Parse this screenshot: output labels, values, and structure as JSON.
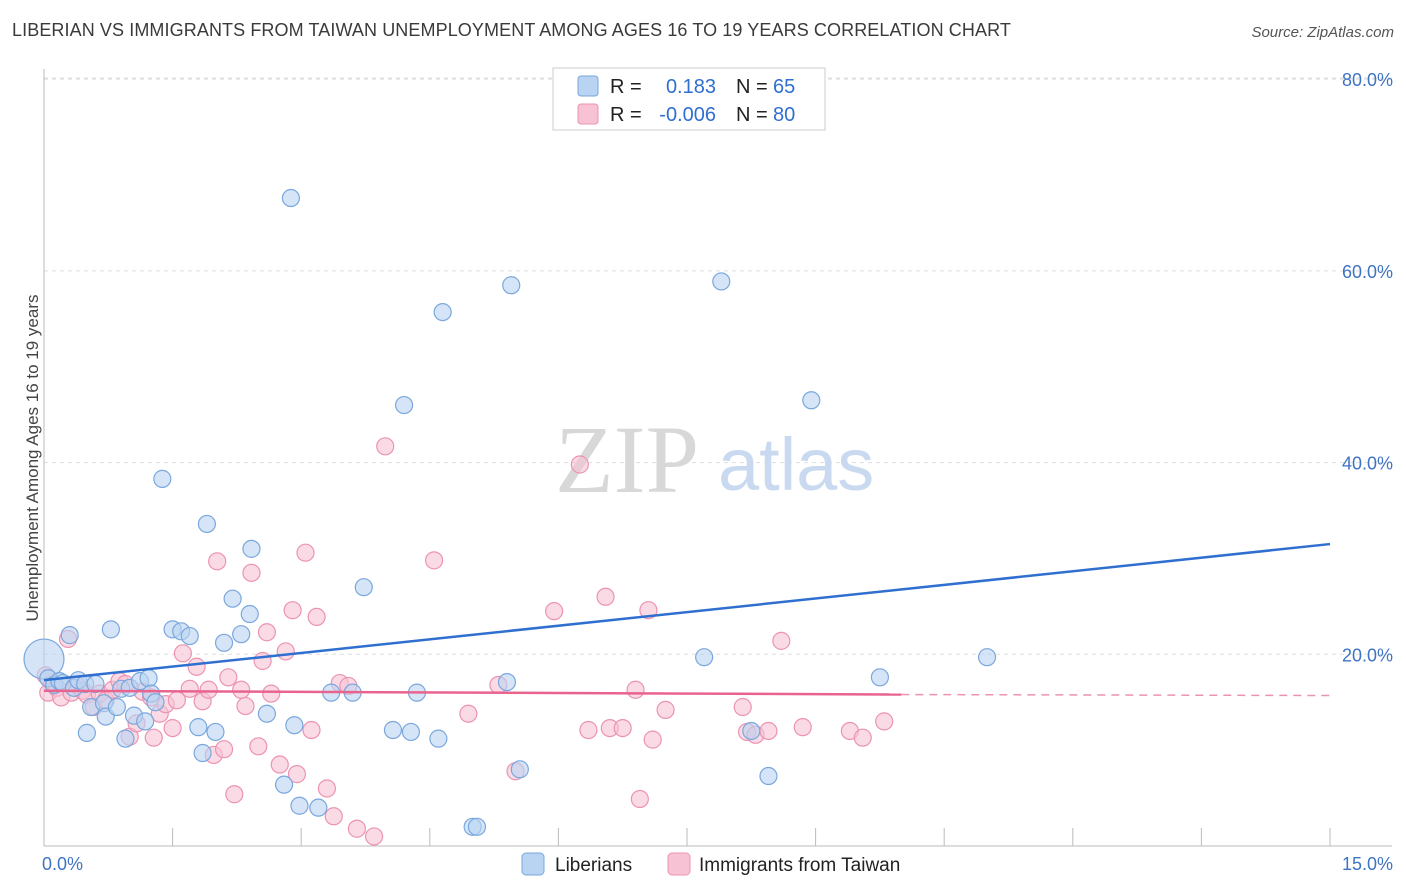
{
  "header": {
    "title": "LIBERIAN VS IMMIGRANTS FROM TAIWAN UNEMPLOYMENT AMONG AGES 16 TO 19 YEARS CORRELATION CHART",
    "source": "Source: ZipAtlas.com"
  },
  "watermark": {
    "zip": "ZIP",
    "atlas": "atlas"
  },
  "legend": {
    "r_label": "R =",
    "n_label": "N =",
    "rows": [
      {
        "r": "0.183",
        "n": "65"
      },
      {
        "r": "-0.006",
        "n": "80"
      }
    ]
  },
  "colors": {
    "blue_fill": "#b9d3f2",
    "blue_stroke": "#7aa7dd",
    "blue_line": "#2f6fd0",
    "pink_fill": "#f7c3d4",
    "pink_stroke": "#ec93b2",
    "pink_line": "#e8648f",
    "grid": "#dddddd",
    "axis": "#bbbbbb"
  },
  "chart_data": {
    "type": "scatter",
    "title": "LIBERIAN VS IMMIGRANTS FROM TAIWAN UNEMPLOYMENT AMONG AGES 16 TO 19 YEARS CORRELATION CHART",
    "xlabel": "",
    "ylabel": "Unemployment Among Ages 16 to 19 years",
    "xlim": [
      0,
      15
    ],
    "ylim": [
      0,
      82
    ],
    "x_tick_labels": [
      "0.0%",
      "15.0%"
    ],
    "y_ticks": [
      20,
      40,
      60,
      80
    ],
    "y_tick_labels": [
      "20.0%",
      "40.0%",
      "60.0%",
      "80.0%"
    ],
    "grid": true,
    "legend_placement": "bottom",
    "series": [
      {
        "name": "Liberians",
        "trend": {
          "x": [
            0,
            15
          ],
          "y": [
            17.3,
            31.5
          ],
          "dashed_to": null
        },
        "points": [
          [
            0.0,
            19.5,
            "big"
          ],
          [
            0.05,
            17.5
          ],
          [
            0.12,
            16.8
          ],
          [
            0.18,
            17.2
          ],
          [
            0.22,
            17.0
          ],
          [
            0.3,
            22.0
          ],
          [
            0.35,
            16.5
          ],
          [
            0.4,
            17.3
          ],
          [
            0.48,
            16.9
          ],
          [
            0.5,
            11.8
          ],
          [
            0.55,
            14.5
          ],
          [
            0.6,
            16.9
          ],
          [
            0.7,
            14.9
          ],
          [
            0.72,
            13.5
          ],
          [
            0.78,
            22.6
          ],
          [
            0.85,
            14.5
          ],
          [
            0.9,
            16.4
          ],
          [
            0.95,
            11.2
          ],
          [
            1.0,
            16.5
          ],
          [
            1.05,
            13.6
          ],
          [
            1.12,
            17.2
          ],
          [
            1.18,
            13.0
          ],
          [
            1.22,
            17.5
          ],
          [
            1.25,
            15.9
          ],
          [
            1.3,
            15.0
          ],
          [
            1.38,
            38.3
          ],
          [
            1.5,
            22.6
          ],
          [
            1.6,
            22.4
          ],
          [
            1.7,
            21.9
          ],
          [
            1.8,
            12.4
          ],
          [
            1.85,
            9.7
          ],
          [
            1.9,
            33.6
          ],
          [
            2.0,
            11.9
          ],
          [
            2.1,
            21.2
          ],
          [
            2.2,
            25.8
          ],
          [
            2.3,
            22.1
          ],
          [
            2.4,
            24.2
          ],
          [
            2.42,
            31.0
          ],
          [
            2.6,
            13.8
          ],
          [
            2.8,
            6.4
          ],
          [
            2.88,
            67.6
          ],
          [
            2.92,
            12.6
          ],
          [
            2.98,
            4.2
          ],
          [
            3.2,
            4.0
          ],
          [
            3.35,
            16.0
          ],
          [
            3.6,
            16.0
          ],
          [
            3.73,
            27.0
          ],
          [
            4.07,
            12.1
          ],
          [
            4.2,
            46.0
          ],
          [
            4.28,
            11.9
          ],
          [
            4.35,
            16.0
          ],
          [
            4.6,
            11.2
          ],
          [
            4.65,
            55.7
          ],
          [
            5.0,
            2.0
          ],
          [
            5.05,
            2.0
          ],
          [
            5.4,
            17.1
          ],
          [
            5.45,
            58.5
          ],
          [
            5.55,
            8.0
          ],
          [
            7.7,
            19.7
          ],
          [
            7.9,
            58.9
          ],
          [
            8.25,
            12.0
          ],
          [
            8.45,
            7.3
          ],
          [
            8.95,
            46.5
          ],
          [
            9.75,
            17.6
          ],
          [
            11.0,
            19.7
          ]
        ]
      },
      {
        "name": "Immigrants from Taiwan",
        "trend": {
          "x": [
            0,
            10.0
          ],
          "y": [
            16.2,
            15.8
          ],
          "dashed_to": [
            15,
            15.7
          ]
        },
        "points": [
          [
            0.02,
            17.8
          ],
          [
            0.05,
            16.0
          ],
          [
            0.1,
            17.0
          ],
          [
            0.15,
            16.5
          ],
          [
            0.2,
            15.5
          ],
          [
            0.28,
            21.6
          ],
          [
            0.32,
            16.0
          ],
          [
            0.38,
            16.8
          ],
          [
            0.45,
            16.2
          ],
          [
            0.5,
            15.8
          ],
          [
            0.58,
            14.5
          ],
          [
            0.65,
            15.9
          ],
          [
            0.72,
            15.2
          ],
          [
            0.8,
            16.3
          ],
          [
            0.88,
            17.2
          ],
          [
            0.95,
            16.9
          ],
          [
            1.0,
            11.4
          ],
          [
            1.08,
            12.8
          ],
          [
            1.15,
            16.1
          ],
          [
            1.25,
            15.5
          ],
          [
            1.28,
            11.3
          ],
          [
            1.35,
            13.8
          ],
          [
            1.42,
            14.8
          ],
          [
            1.5,
            12.3
          ],
          [
            1.55,
            15.2
          ],
          [
            1.62,
            20.1
          ],
          [
            1.7,
            16.4
          ],
          [
            1.78,
            18.7
          ],
          [
            1.85,
            15.1
          ],
          [
            1.92,
            16.3
          ],
          [
            1.98,
            9.5
          ],
          [
            2.02,
            29.7
          ],
          [
            2.1,
            10.1
          ],
          [
            2.15,
            17.6
          ],
          [
            2.22,
            5.4
          ],
          [
            2.3,
            16.3
          ],
          [
            2.35,
            14.6
          ],
          [
            2.42,
            28.5
          ],
          [
            2.5,
            10.4
          ],
          [
            2.55,
            19.3
          ],
          [
            2.6,
            22.3
          ],
          [
            2.65,
            15.9
          ],
          [
            2.75,
            8.5
          ],
          [
            2.82,
            20.3
          ],
          [
            2.9,
            24.6
          ],
          [
            2.95,
            7.5
          ],
          [
            3.05,
            30.6
          ],
          [
            3.12,
            12.1
          ],
          [
            3.18,
            23.9
          ],
          [
            3.3,
            6.0
          ],
          [
            3.38,
            3.1
          ],
          [
            3.45,
            17.0
          ],
          [
            3.55,
            16.7
          ],
          [
            3.65,
            1.8
          ],
          [
            3.85,
            1.0
          ],
          [
            3.98,
            41.7
          ],
          [
            4.55,
            29.8
          ],
          [
            4.95,
            13.8
          ],
          [
            5.3,
            16.8
          ],
          [
            5.5,
            7.8
          ],
          [
            5.95,
            24.5
          ],
          [
            6.25,
            39.8
          ],
          [
            6.35,
            12.1
          ],
          [
            6.55,
            26.0
          ],
          [
            6.6,
            12.3
          ],
          [
            6.75,
            12.3
          ],
          [
            6.9,
            16.3
          ],
          [
            6.95,
            4.9
          ],
          [
            7.05,
            24.6
          ],
          [
            7.1,
            11.1
          ],
          [
            7.25,
            14.2
          ],
          [
            8.15,
            14.5
          ],
          [
            8.2,
            11.9
          ],
          [
            8.3,
            11.6
          ],
          [
            8.45,
            12.0
          ],
          [
            8.6,
            21.4
          ],
          [
            8.85,
            12.4
          ],
          [
            9.4,
            12.0
          ],
          [
            9.55,
            11.3
          ],
          [
            9.8,
            13.0
          ]
        ]
      }
    ]
  }
}
